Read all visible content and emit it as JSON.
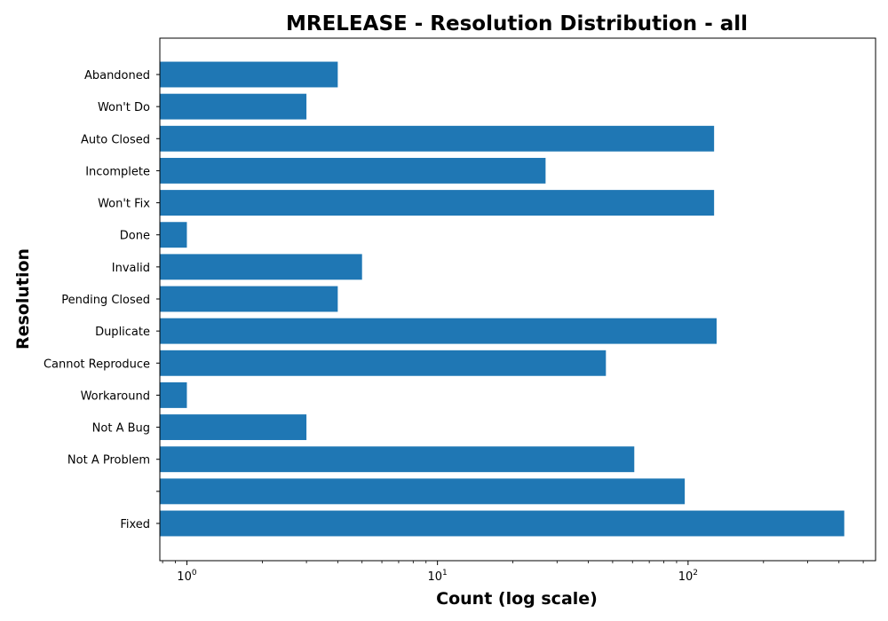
{
  "chart_data": {
    "type": "bar",
    "orientation": "horizontal",
    "title": "MRELEASE - Resolution Distribution - all",
    "xlabel": "Count (log scale)",
    "ylabel": "Resolution",
    "xscale": "log",
    "xlim": [
      0.78,
      560
    ],
    "x_ticks": [
      {
        "value": 1,
        "base": "10",
        "exp": "0"
      },
      {
        "value": 10,
        "base": "10",
        "exp": "1"
      },
      {
        "value": 100,
        "base": "10",
        "exp": "2"
      }
    ],
    "categories": [
      "Abandoned",
      "Won't Do",
      "Auto Closed",
      "Incomplete",
      "Won't Fix",
      "Done",
      "Invalid",
      "Pending Closed",
      "Duplicate",
      "Cannot Reproduce",
      "Workaround",
      "Not A Bug",
      "Not A Problem",
      "",
      "Fixed"
    ],
    "values": [
      4,
      3,
      127,
      27,
      127,
      1,
      5,
      4,
      130,
      47,
      1,
      3,
      61,
      97,
      420
    ],
    "bar_color": "#1f77b4",
    "grid": false,
    "legend": "none"
  }
}
